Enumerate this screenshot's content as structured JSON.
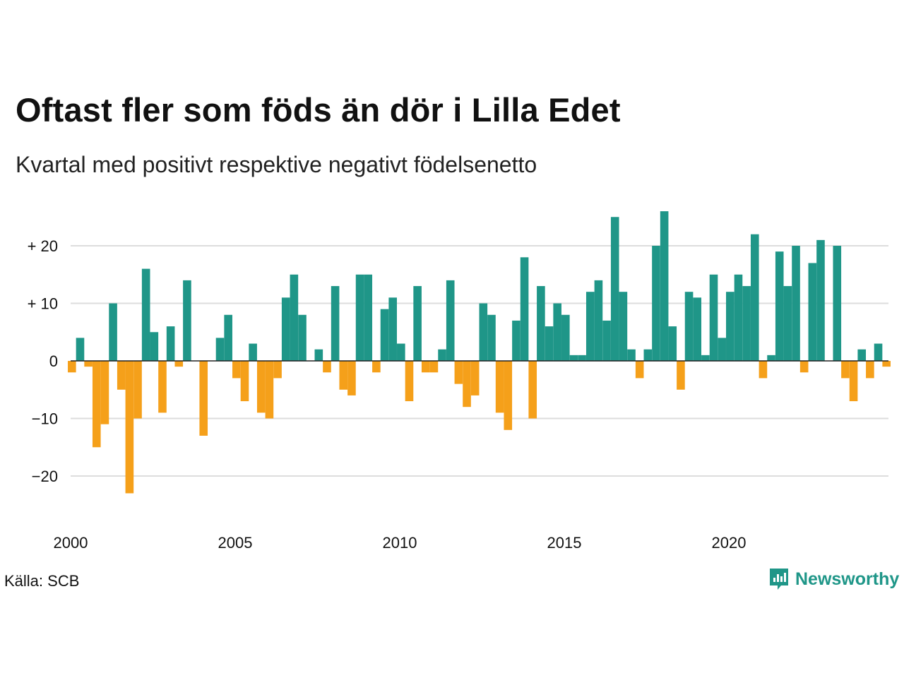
{
  "title": "Oftast fler som föds än dör i Lilla Edet",
  "subtitle": "Kvartal med positivt respektive negativt födelsenetto",
  "source": "Källa: SCB",
  "brand": "Newsworthy",
  "colors": {
    "positive": "#1f9688",
    "negative": "#f5a01a",
    "grid": "#dddddd",
    "zero": "#222222"
  },
  "chart_data": {
    "type": "bar",
    "x_start": 2000,
    "x_step": 0.25,
    "ylim": [
      -26,
      28
    ],
    "y_ticks": [
      20,
      10,
      0,
      -10,
      -20
    ],
    "y_tick_labels": [
      "+ 20",
      "+ 10",
      "0",
      "−10",
      "−20"
    ],
    "x_ticks": [
      2000,
      2005,
      2010,
      2015,
      2020
    ],
    "x_tick_labels": [
      "2000",
      "2005",
      "2010",
      "2015",
      "2020"
    ],
    "grid": true,
    "values": [
      -2,
      4,
      -1,
      -15,
      -11,
      10,
      -5,
      -23,
      -10,
      16,
      5,
      -9,
      6,
      -1,
      14,
      0,
      -13,
      0,
      4,
      8,
      -3,
      -7,
      3,
      -9,
      -10,
      -3,
      11,
      15,
      8,
      0,
      2,
      -2,
      13,
      -5,
      -6,
      15,
      15,
      -2,
      9,
      11,
      3,
      -7,
      13,
      -2,
      -2,
      2,
      14,
      -4,
      -8,
      -6,
      10,
      8,
      -9,
      -12,
      7,
      18,
      -10,
      13,
      6,
      10,
      8,
      1,
      1,
      12,
      14,
      7,
      25,
      12,
      2,
      -3,
      2,
      20,
      26,
      6,
      -5,
      12,
      11,
      1,
      15,
      4,
      12,
      15,
      13,
      22,
      -3,
      1,
      19,
      13,
      20,
      -2,
      17,
      21,
      0,
      20,
      -3,
      -7,
      2,
      -3,
      3,
      -1
    ]
  }
}
